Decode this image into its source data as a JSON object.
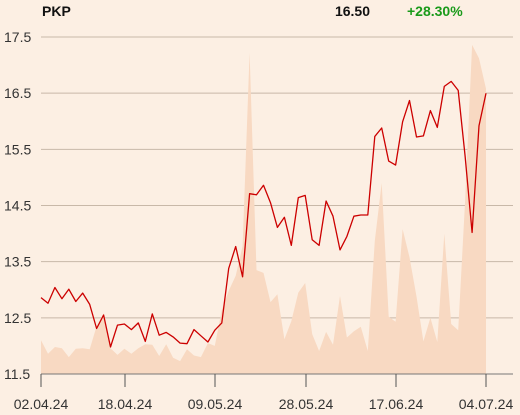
{
  "header": {
    "ticker": "PKP",
    "price": "16.50",
    "change": "+28.30%"
  },
  "colors": {
    "background": "#fcefe3",
    "line": "#cc0000",
    "volume": "#f8d9c2",
    "grid": "#c8b8a8",
    "change_positive": "#1a9a1a"
  },
  "chart_data": {
    "type": "line",
    "title": "",
    "xlabel": "",
    "ylabel": "",
    "ylim": [
      11.5,
      17.5
    ],
    "y_ticks": [
      "17.5",
      "16.5",
      "15.5",
      "14.5",
      "13.5",
      "12.5",
      "11.5"
    ],
    "x_ticks": [
      "02.04.24",
      "18.04.24",
      "09.05.24",
      "28.05.24",
      "17.06.24",
      "04.07.24"
    ],
    "grid": true,
    "series": [
      {
        "name": "",
        "values": [
          12.86,
          12.76,
          13.04,
          12.84,
          13.01,
          12.79,
          12.94,
          12.74,
          12.31,
          12.55,
          11.98,
          12.37,
          12.39,
          12.29,
          12.41,
          12.08,
          12.57,
          12.19,
          12.24,
          12.16,
          12.05,
          12.04,
          12.29,
          12.18,
          12.07,
          12.28,
          12.41,
          13.38,
          13.77,
          13.23,
          14.71,
          14.69,
          14.86,
          14.55,
          14.11,
          14.29,
          13.79,
          14.64,
          14.68,
          13.89,
          13.79,
          14.58,
          14.31,
          13.71,
          13.95,
          14.31,
          14.33,
          14.33,
          15.73,
          15.88,
          15.29,
          15.22,
          15.99,
          16.37,
          15.72,
          15.74,
          16.19,
          15.89,
          16.62,
          16.71,
          16.55,
          15.38,
          14.02,
          15.92,
          16.5
        ]
      },
      {
        "name": "",
        "values": [
          0.6,
          0.36,
          0.48,
          0.46,
          0.3,
          0.45,
          0.46,
          0.44,
          0.85,
          1.08,
          0.46,
          0.34,
          0.45,
          0.36,
          0.46,
          0.53,
          0.52,
          0.32,
          0.53,
          0.29,
          0.23,
          0.44,
          0.33,
          0.3,
          0.55,
          0.5,
          1.14,
          1.48,
          1.75,
          2.28,
          5.72,
          1.85,
          1.8,
          1.28,
          1.42,
          0.62,
          0.94,
          1.45,
          1.62,
          0.71,
          0.41,
          0.75,
          0.52,
          1.39,
          0.65,
          0.76,
          0.84,
          0.41,
          2.37,
          3.4,
          1.02,
          0.93,
          2.58,
          2.08,
          1.38,
          0.58,
          1.0,
          0.57,
          2.5,
          0.89,
          0.78,
          3.08,
          5.86,
          5.62,
          5.08
        ]
      }
    ]
  }
}
